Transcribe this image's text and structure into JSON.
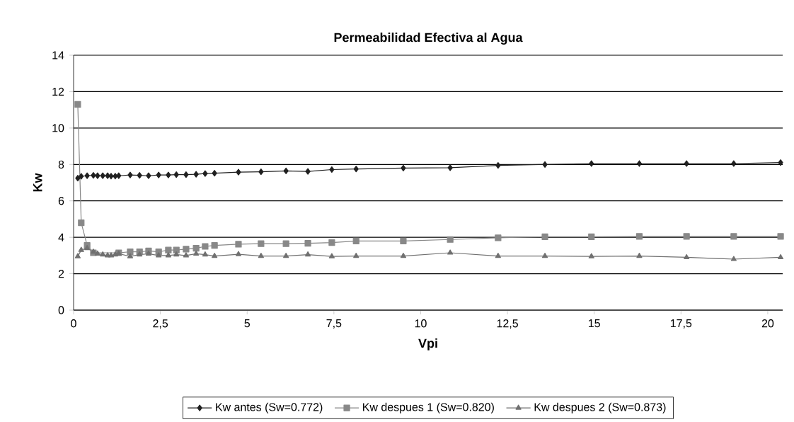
{
  "chart_data": {
    "type": "line",
    "title": "Permeabilidad Efectiva al Agua",
    "xlabel": "Vpi",
    "ylabel": "Kw",
    "x": [
      0.12,
      0.22,
      0.39,
      0.57,
      0.69,
      0.84,
      0.98,
      1.08,
      1.2,
      1.3,
      1.63,
      1.9,
      2.16,
      2.45,
      2.73,
      2.96,
      3.24,
      3.53,
      3.79,
      4.06,
      4.75,
      5.4,
      6.12,
      6.75,
      7.44,
      8.14,
      9.5,
      10.85,
      12.23,
      13.58,
      14.92,
      16.3,
      17.66,
      19.02,
      20.37
    ],
    "series": [
      {
        "name": "Kw antes (Sw=0.772)",
        "color": "#202020",
        "marker": "diamond",
        "values": [
          7.25,
          7.35,
          7.38,
          7.4,
          7.38,
          7.38,
          7.38,
          7.36,
          7.36,
          7.38,
          7.42,
          7.4,
          7.38,
          7.42,
          7.42,
          7.44,
          7.44,
          7.46,
          7.5,
          7.52,
          7.58,
          7.6,
          7.65,
          7.62,
          7.72,
          7.75,
          7.8,
          7.82,
          7.95,
          8.0,
          8.05,
          8.05,
          8.05,
          8.05,
          8.1
        ]
      },
      {
        "name": "Kw despues 1 (Sw=0.820)",
        "color": "#888888",
        "marker": "square",
        "values": [
          11.3,
          4.8,
          3.55,
          3.15,
          null,
          null,
          null,
          null,
          null,
          3.15,
          3.2,
          3.2,
          3.25,
          3.2,
          3.3,
          3.3,
          3.35,
          3.4,
          3.5,
          3.55,
          3.62,
          3.65,
          3.65,
          3.67,
          3.71,
          3.8,
          3.8,
          3.88,
          3.97,
          4.03,
          4.03,
          4.05,
          4.05,
          4.05,
          4.05
        ]
      },
      {
        "name": "Kw despues 2 (Sw=0.873)",
        "color": "#707070",
        "marker": "triangle",
        "values": [
          2.95,
          3.3,
          3.4,
          3.2,
          3.1,
          3.05,
          3.0,
          3.0,
          3.05,
          3.1,
          2.95,
          3.05,
          3.1,
          3.0,
          3.0,
          3.05,
          3.0,
          3.1,
          3.05,
          2.97,
          3.07,
          2.97,
          2.97,
          3.05,
          2.95,
          2.97,
          2.97,
          3.15,
          2.97,
          2.97,
          2.95,
          2.97,
          2.9,
          2.8,
          2.9
        ]
      }
    ],
    "xlim": [
      0,
      20.43
    ],
    "ylim": [
      0,
      14
    ],
    "xticks": [
      0,
      {
        "value": 2.5,
        "label": "2,5"
      },
      5,
      {
        "value": 7.5,
        "label": "7,5"
      },
      10,
      {
        "value": 12.5,
        "label": "12,5"
      },
      15,
      {
        "value": 17.5,
        "label": "17,5"
      },
      20
    ],
    "yticks": [
      0,
      2,
      4,
      6,
      8,
      10,
      12,
      14
    ],
    "grid": "y",
    "legend": "bottom",
    "line_style": "solid"
  }
}
